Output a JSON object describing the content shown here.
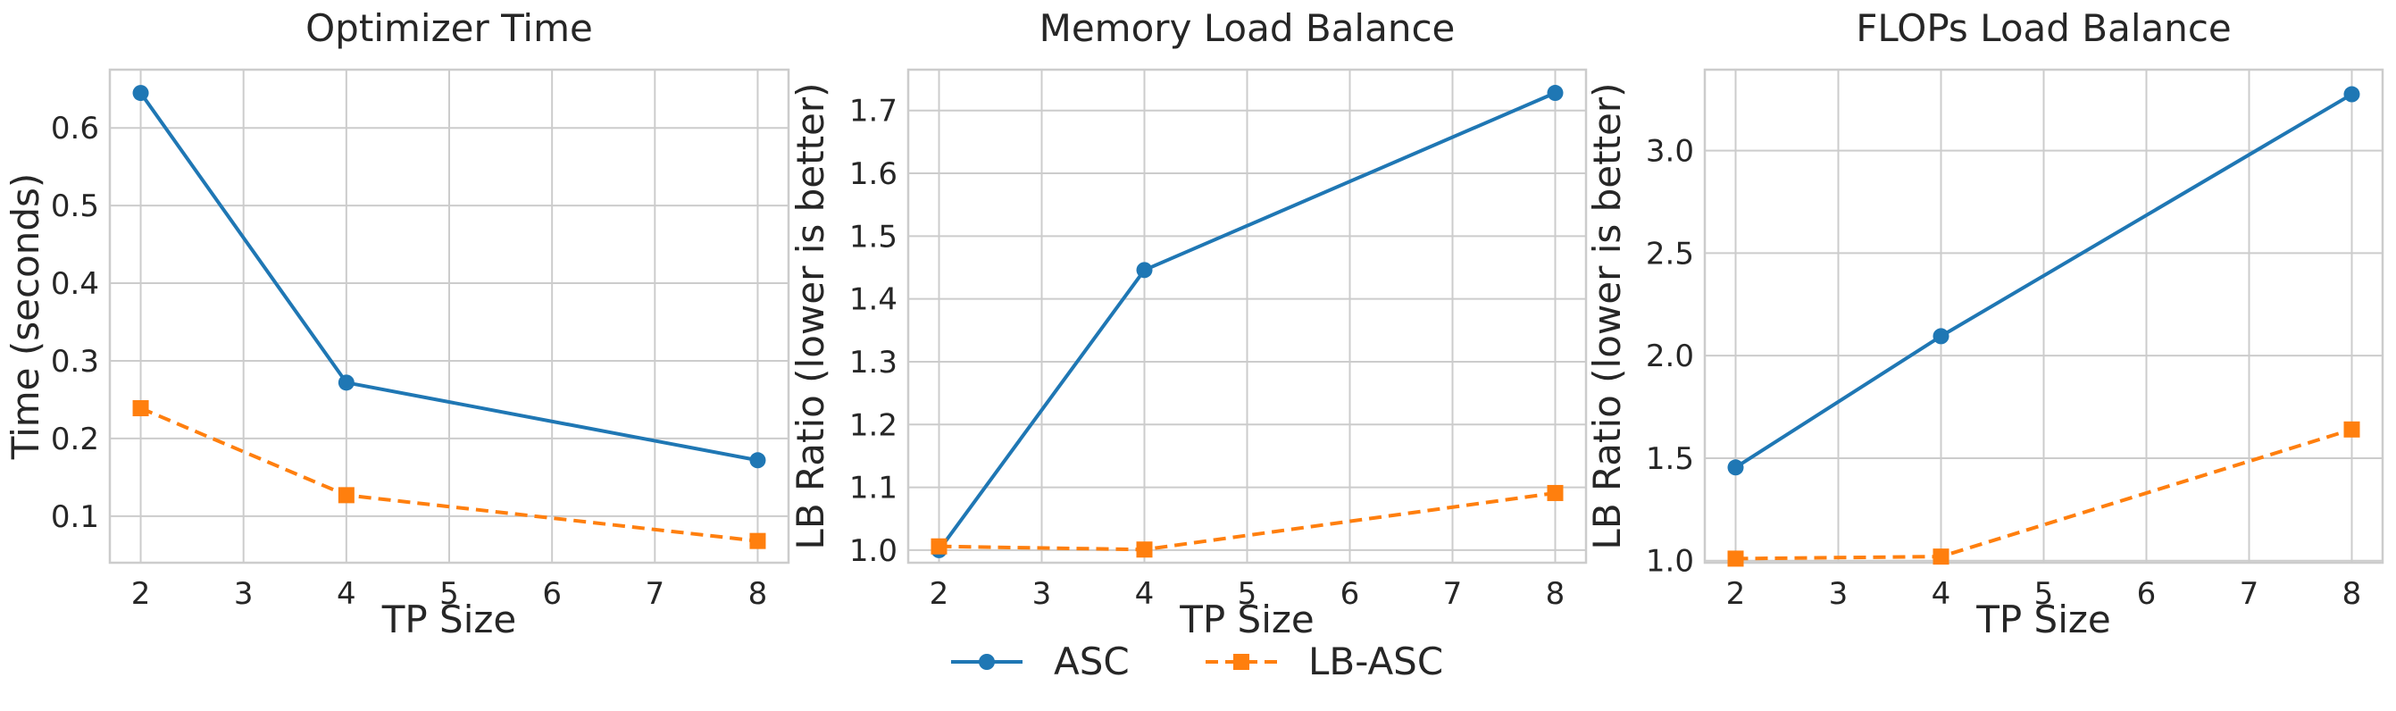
{
  "chart_data": [
    {
      "type": "line",
      "title": "Optimizer Time",
      "xlabel": "TP Size",
      "ylabel": "Time (seconds)",
      "x": [
        2,
        4,
        8
      ],
      "xticks": [
        "2",
        "3",
        "4",
        "5",
        "6",
        "7",
        "8"
      ],
      "xlim": [
        1.7,
        8.3
      ],
      "yticks": [
        "0.1",
        "0.2",
        "0.3",
        "0.4",
        "0.5",
        "0.6"
      ],
      "ylim": [
        0.04,
        0.675
      ],
      "grid": true,
      "series": [
        {
          "name": "ASC",
          "values": [
            0.645,
            0.272,
            0.172
          ]
        },
        {
          "name": "LB-ASC",
          "values": [
            0.239,
            0.127,
            0.068
          ]
        }
      ]
    },
    {
      "type": "line",
      "title": "Memory Load Balance",
      "xlabel": "TP Size",
      "ylabel": "LB Ratio (lower is better)",
      "x": [
        2,
        4,
        8
      ],
      "xticks": [
        "2",
        "3",
        "4",
        "5",
        "6",
        "7",
        "8"
      ],
      "xlim": [
        1.7,
        8.3
      ],
      "yticks": [
        "1.0",
        "1.1",
        "1.2",
        "1.3",
        "1.4",
        "1.5",
        "1.6",
        "1.7"
      ],
      "ylim": [
        0.98,
        1.765
      ],
      "grid": true,
      "series": [
        {
          "name": "ASC",
          "values": [
            1.0,
            1.446,
            1.728
          ]
        },
        {
          "name": "LB-ASC",
          "values": [
            1.006,
            1.001,
            1.091
          ]
        }
      ]
    },
    {
      "type": "line",
      "title": "FLOPs Load Balance",
      "xlabel": "TP Size",
      "ylabel": "LB Ratio (lower is better)",
      "x": [
        2,
        4,
        8
      ],
      "xticks": [
        "2",
        "3",
        "4",
        "5",
        "6",
        "7",
        "8"
      ],
      "xlim": [
        1.7,
        8.3
      ],
      "yticks": [
        "1.0",
        "1.5",
        "2.0",
        "2.5",
        "3.0"
      ],
      "ylim": [
        0.99,
        3.395
      ],
      "grid": true,
      "series": [
        {
          "name": "ASC",
          "values": [
            1.455,
            2.095,
            3.275
          ]
        },
        {
          "name": "LB-ASC",
          "values": [
            1.01,
            1.02,
            1.64
          ]
        }
      ]
    }
  ],
  "legend": {
    "placement": "bottom-center",
    "items": [
      {
        "label": "ASC",
        "color": "#1f77b4",
        "marker": "circle",
        "dash": "solid"
      },
      {
        "label": "LB-ASC",
        "color": "#ff7f0e",
        "marker": "square",
        "dash": "dashed"
      }
    ]
  },
  "colors": {
    "ASC": "#1f77b4",
    "LB-ASC": "#ff7f0e"
  }
}
